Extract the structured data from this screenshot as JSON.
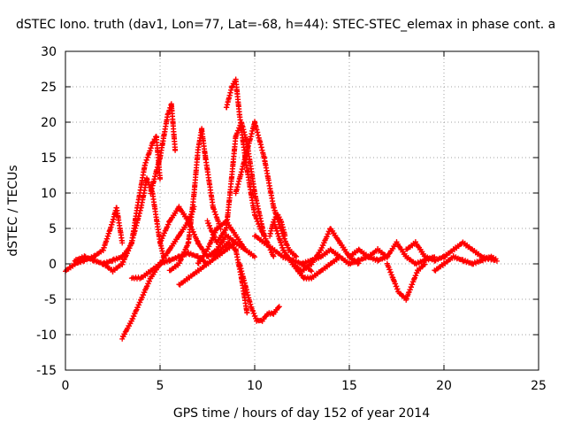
{
  "chart_data": {
    "type": "scatter",
    "title": "dSTEC Iono. truth (dav1, Lon=77, Lat=-68, h=44): STEC-STEC_elemax in phase cont. a",
    "xlabel": "GPS time / hours of day 152 of year 2014",
    "ylabel": "dSTEC  / TECUs",
    "xlim": [
      0,
      25
    ],
    "ylim": [
      -15,
      30
    ],
    "xticks": [
      0,
      5,
      10,
      15,
      20,
      25
    ],
    "yticks": [
      -15,
      -10,
      -5,
      0,
      5,
      10,
      15,
      20,
      25,
      30
    ],
    "grid": true,
    "marker": "plus",
    "color": "#ff0000",
    "tracks": [
      {
        "x": [
          0.0,
          0.5,
          1.0,
          1.5,
          2.0,
          2.5,
          2.7,
          3.0
        ],
        "y": [
          -1,
          0,
          0.5,
          1,
          2,
          6,
          8,
          3
        ]
      },
      {
        "x": [
          0.5,
          1.0,
          1.5,
          2.0,
          2.5,
          3.0,
          3.3
        ],
        "y": [
          0.5,
          1,
          0.5,
          0,
          0.5,
          1,
          2
        ]
      },
      {
        "x": [
          2.0,
          2.5,
          3.0,
          3.5,
          4.0,
          4.3,
          4.6,
          5.0,
          5.2
        ],
        "y": [
          0,
          -1,
          0,
          3,
          8,
          12,
          10,
          3,
          1
        ]
      },
      {
        "x": [
          3.0,
          3.5,
          3.8,
          4.2,
          4.6,
          4.8,
          5.0
        ],
        "y": [
          0,
          3,
          8,
          14,
          17,
          18,
          12
        ]
      },
      {
        "x": [
          3.0,
          3.5,
          4.0,
          4.5,
          5.0,
          5.5,
          6.0,
          6.5,
          6.8
        ],
        "y": [
          -10.5,
          -8,
          -5,
          -2,
          0,
          2,
          4,
          6,
          8
        ]
      },
      {
        "x": [
          4.5,
          4.8,
          5.0,
          5.2,
          5.4,
          5.6,
          5.8
        ],
        "y": [
          10,
          13,
          15,
          18,
          21,
          22.5,
          16
        ]
      },
      {
        "x": [
          3.5,
          4.0,
          4.5,
          5.0,
          5.5,
          6.0,
          6.5,
          7.0,
          7.5
        ],
        "y": [
          -2,
          -2,
          -1,
          0,
          0.5,
          1,
          1.5,
          1,
          0
        ]
      },
      {
        "x": [
          5.0,
          5.5,
          6.0,
          6.5,
          7.0,
          7.5,
          8.0,
          8.5,
          9.0,
          9.5
        ],
        "y": [
          3,
          6,
          8,
          6,
          3,
          1,
          2,
          4,
          3,
          2
        ]
      },
      {
        "x": [
          5.5,
          6.0,
          6.5,
          6.8,
          7.0,
          7.2,
          7.4,
          7.8,
          8.2
        ],
        "y": [
          -1,
          0,
          3,
          10,
          16,
          19,
          15,
          8,
          5
        ]
      },
      {
        "x": [
          6.0,
          6.5,
          7.0,
          7.5,
          8.0,
          8.5,
          9.0
        ],
        "y": [
          -3,
          -2,
          -1,
          0,
          1,
          2,
          3
        ]
      },
      {
        "x": [
          7.0,
          7.5,
          8.0,
          8.5,
          9.0,
          9.5,
          10.0
        ],
        "y": [
          0,
          2,
          5,
          6,
          4,
          2,
          1
        ]
      },
      {
        "x": [
          8.5,
          8.8,
          9.0,
          9.2,
          9.5,
          9.8,
          10.0,
          10.3,
          10.5
        ],
        "y": [
          22,
          25,
          26,
          21,
          15,
          10,
          7,
          5,
          4
        ]
      },
      {
        "x": [
          7.5,
          8.0,
          8.5,
          8.7,
          9.0,
          9.3,
          9.6,
          10.0,
          10.5,
          11.0
        ],
        "y": [
          6,
          3,
          5,
          10,
          18,
          20,
          17,
          10,
          4,
          1
        ]
      },
      {
        "x": [
          7.8,
          8.2,
          8.6,
          9.0,
          9.3,
          9.6
        ],
        "y": [
          1,
          2,
          3,
          2,
          -2,
          -7
        ]
      },
      {
        "x": [
          9.2,
          9.5,
          9.8,
          10.1,
          10.4,
          10.7,
          11.0,
          11.3
        ],
        "y": [
          0,
          -3,
          -6,
          -8,
          -8,
          -7,
          -7,
          -6
        ]
      },
      {
        "x": [
          9.0,
          9.5,
          10.0,
          10.5,
          11.0,
          11.5,
          11.8,
          12.2
        ],
        "y": [
          10,
          15,
          20,
          15,
          8,
          4,
          2,
          1
        ]
      },
      {
        "x": [
          10.0,
          10.5,
          11.0,
          11.5,
          12.0,
          12.5,
          13.0
        ],
        "y": [
          4,
          3,
          2,
          1,
          0.5,
          0,
          -1
        ]
      },
      {
        "x": [
          11.0,
          11.5,
          12.0,
          12.3,
          12.6,
          13.0,
          13.5,
          14.0,
          14.5
        ],
        "y": [
          6,
          2,
          0,
          -1,
          -2,
          -2,
          -1,
          0,
          1
        ]
      },
      {
        "x": [
          12.0,
          12.5,
          13.0,
          13.5,
          14.0,
          14.5,
          15.0,
          15.5
        ],
        "y": [
          0,
          -1,
          0,
          2,
          5,
          3,
          1,
          0
        ]
      },
      {
        "x": [
          10.8,
          11.0,
          11.2,
          11.4,
          11.6
        ],
        "y": [
          4,
          6,
          7,
          6,
          4
        ]
      },
      {
        "x": [
          12.5,
          13.0,
          13.5,
          14.0,
          14.5,
          15.0,
          15.5,
          16.0,
          16.5,
          17.0
        ],
        "y": [
          0,
          0.5,
          1,
          2,
          1,
          0,
          0.5,
          1,
          2,
          1
        ]
      },
      {
        "x": [
          15.0,
          15.5,
          16.0,
          16.5,
          17.0,
          17.5,
          18.0,
          18.5,
          19.0,
          19.5
        ],
        "y": [
          1,
          2,
          1,
          0.5,
          1,
          3,
          1,
          0,
          0.5,
          1
        ]
      },
      {
        "x": [
          17.0,
          17.3,
          17.6,
          18.0,
          18.3,
          18.6,
          19.0
        ],
        "y": [
          0,
          -2,
          -4,
          -5,
          -3,
          -1,
          0
        ]
      },
      {
        "x": [
          18.0,
          18.5,
          19.0,
          19.5,
          20.0,
          20.5,
          21.0,
          21.5,
          22.0,
          22.7
        ],
        "y": [
          2,
          3,
          1,
          0.5,
          1,
          2,
          3,
          2,
          1,
          0.5
        ]
      },
      {
        "x": [
          19.5,
          20.0,
          20.5,
          21.0,
          21.5,
          22.0,
          22.5,
          22.8
        ],
        "y": [
          -1,
          0,
          1,
          0.5,
          0,
          0.5,
          1,
          0.5
        ]
      }
    ]
  }
}
